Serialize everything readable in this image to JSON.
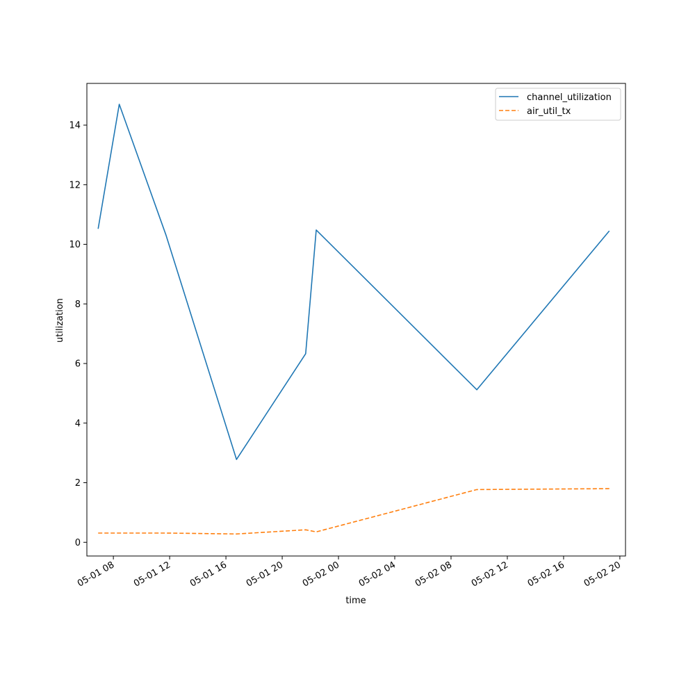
{
  "chart_data": {
    "type": "line",
    "title": "",
    "xlabel": "time",
    "ylabel": "utilization",
    "x_tick_labels": [
      "05-01 08",
      "05-01 12",
      "05-01 16",
      "05-01 20",
      "05-02 00",
      "05-02 04",
      "05-02 08",
      "05-02 12",
      "05-02 16",
      "05-02 20"
    ],
    "x_tick_times": [
      "2024-05-01T08:00",
      "2024-05-01T12:00",
      "2024-05-01T16:00",
      "2024-05-01T20:00",
      "2024-05-02T00:00",
      "2024-05-02T04:00",
      "2024-05-02T08:00",
      "2024-05-02T12:00",
      "2024-05-02T16:00",
      "2024-05-02T20:00"
    ],
    "y_ticks": [
      0,
      2,
      4,
      6,
      8,
      10,
      12,
      14
    ],
    "xlim": [
      "2024-05-01T06:07",
      "2024-05-02T20:24"
    ],
    "ylim": [
      -0.46,
      15.4
    ],
    "grid": false,
    "legend_position": "top-right",
    "series": [
      {
        "name": "channel_utilization",
        "color": "#1f77b4",
        "dash": "solid",
        "points": [
          {
            "x": "2024-05-01T06:55",
            "y": 10.52
          },
          {
            "x": "2024-05-01T08:25",
            "y": 14.7
          },
          {
            "x": "2024-05-01T11:45",
            "y": 10.3
          },
          {
            "x": "2024-05-01T16:45",
            "y": 2.78
          },
          {
            "x": "2024-05-01T21:40",
            "y": 6.33
          },
          {
            "x": "2024-05-01T22:25",
            "y": 10.48
          },
          {
            "x": "2024-05-02T09:50",
            "y": 5.12
          },
          {
            "x": "2024-05-02T19:15",
            "y": 10.45
          }
        ]
      },
      {
        "name": "air_util_tx",
        "color": "#ff7f0e",
        "dash": "dashed",
        "points": [
          {
            "x": "2024-05-01T06:55",
            "y": 0.31
          },
          {
            "x": "2024-05-01T11:45",
            "y": 0.31
          },
          {
            "x": "2024-05-01T16:45",
            "y": 0.28
          },
          {
            "x": "2024-05-01T21:40",
            "y": 0.42
          },
          {
            "x": "2024-05-01T22:25",
            "y": 0.35
          },
          {
            "x": "2024-05-02T09:50",
            "y": 1.77
          },
          {
            "x": "2024-05-02T19:15",
            "y": 1.8
          }
        ]
      }
    ]
  }
}
